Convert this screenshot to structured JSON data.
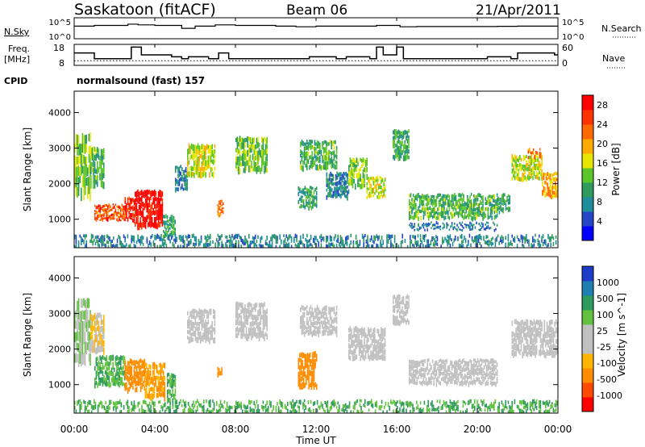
{
  "header": {
    "station": "Saskatoon (fitACF)",
    "beam": "Beam 06",
    "date": "21/Apr/2011"
  },
  "aux": {
    "nsky_label": "N.Sky",
    "nsky_ticks": [
      "10^5",
      "10^0"
    ],
    "nsearch_label": "N.Search",
    "nsearch_ticks": [
      "10^5",
      "10^0"
    ],
    "freq_label_top": "Freq.",
    "freq_label_bottom": "[MHz]",
    "freq_ticks": [
      "18",
      "8"
    ],
    "nave_label": "Nave",
    "nave_ticks": [
      "60",
      "0"
    ],
    "cpid_label": "CPID",
    "cpid_text": "normalsound (fast) 157"
  },
  "colors": {
    "power": [
      "#0000ff",
      "#2546c8",
      "#1e8e9a",
      "#2e9a5e",
      "#5cc52a",
      "#e6e600",
      "#ffaa00",
      "#ff6a00",
      "#ff3300",
      "#ff0000"
    ],
    "velocity": [
      "#ff0000",
      "#ff4a00",
      "#ff8c00",
      "#ffb400",
      "#c0c0c0",
      "#c0c0c0",
      "#62c240",
      "#2e9a5e",
      "#1e7fb0",
      "#1e3cc8"
    ]
  },
  "chart_data": [
    {
      "type": "line",
      "title": "N.Sky",
      "x": [
        "00:00",
        "01:00",
        "02:00",
        "02:40",
        "03:10",
        "04:00",
        "05:00",
        "05:20",
        "06:00",
        "07:00",
        "07:40",
        "08:00",
        "09:00",
        "10:00",
        "11:00",
        "12:00",
        "13:00",
        "14:00",
        "15:00",
        "16:00",
        "16:10",
        "17:00",
        "18:00",
        "19:00",
        "20:00",
        "21:00",
        "22:00",
        "23:00",
        "24:00"
      ],
      "ylim": [
        1,
        100000
      ],
      "yscale": "log",
      "yticks": [
        "10^0",
        "10^5"
      ],
      "values": [
        1000,
        1500,
        1500,
        3000,
        2000,
        1500,
        1500,
        300,
        1000,
        2000,
        2000,
        1500,
        1500,
        1000,
        700,
        1000,
        1000,
        1000,
        1500,
        1500,
        700,
        800,
        800,
        800,
        800,
        900,
        1000,
        1000,
        1000
      ]
    },
    {
      "type": "line",
      "title": "Freq.",
      "ylabel": "[MHz]",
      "ylim": [
        8,
        18
      ],
      "yticks": [
        "8",
        "18"
      ],
      "x_steps": [
        "00:00",
        "00:40",
        "01:00",
        "02:20",
        "02:50",
        "03:20",
        "04:50",
        "05:20",
        "05:40",
        "06:40",
        "07:10",
        "07:40",
        "10:00",
        "11:40",
        "13:00",
        "13:30",
        "14:40",
        "15:00",
        "15:20",
        "16:00",
        "16:20",
        "19:30",
        "20:30",
        "21:40",
        "22:00",
        "23:50",
        "24:00"
      ],
      "values": [
        14,
        14,
        11,
        11,
        17,
        13,
        12,
        11,
        12,
        11,
        14,
        11,
        11,
        12,
        11,
        12,
        11,
        17,
        13,
        17,
        11,
        11,
        12,
        11,
        14,
        13,
        13
      ],
      "reference_line": {
        "name": "Nave",
        "value": 12,
        "ylim": [
          0,
          60
        ],
        "yticks": [
          "0",
          "60"
        ]
      }
    },
    {
      "type": "heatmap",
      "title": "Power",
      "ylabel": "Slant Range [km]",
      "xlabel": "",
      "xlim": [
        "00:00",
        "24:00"
      ],
      "xticks": [
        "00:00",
        "04:00",
        "08:00",
        "12:00",
        "16:00",
        "20:00",
        "00:00"
      ],
      "ylim": [
        200,
        4600
      ],
      "yticks": [
        1000,
        2000,
        3000,
        4000
      ],
      "colorbar": {
        "label": "Power [dB]",
        "ticks": [
          4,
          8,
          12,
          16,
          20,
          24,
          28
        ],
        "range": [
          0,
          30
        ]
      },
      "segments": [
        [
          0.0,
          0.8,
          1600,
          3400,
          14
        ],
        [
          0.8,
          1.5,
          1900,
          3000,
          12
        ],
        [
          1.0,
          2.5,
          950,
          1400,
          24
        ],
        [
          2.5,
          3.0,
          950,
          1600,
          27
        ],
        [
          3.0,
          4.4,
          750,
          1800,
          29
        ],
        [
          4.4,
          5.0,
          500,
          1100,
          10
        ],
        [
          5.0,
          5.6,
          1800,
          2500,
          8
        ],
        [
          5.6,
          7.0,
          2200,
          3100,
          16
        ],
        [
          7.1,
          7.4,
          1100,
          1500,
          22
        ],
        [
          8.0,
          9.6,
          2300,
          3300,
          14
        ],
        [
          11.1,
          12.0,
          1300,
          1900,
          10
        ],
        [
          11.2,
          13.0,
          2400,
          3200,
          12
        ],
        [
          12.5,
          13.6,
          1600,
          2300,
          8
        ],
        [
          13.6,
          14.5,
          1900,
          2700,
          14
        ],
        [
          14.5,
          15.4,
          1600,
          2200,
          16
        ],
        [
          15.8,
          16.6,
          2700,
          3500,
          11
        ],
        [
          16.6,
          21.0,
          1000,
          1700,
          12
        ],
        [
          16.6,
          21.0,
          700,
          900,
          7
        ],
        [
          21.0,
          21.6,
          1200,
          1700,
          10
        ],
        [
          21.7,
          23.2,
          2100,
          2800,
          16
        ],
        [
          22.5,
          23.2,
          2700,
          3000,
          22
        ],
        [
          23.2,
          24.0,
          1600,
          2300,
          20
        ],
        [
          0.0,
          24.0,
          200,
          550,
          8
        ]
      ]
    },
    {
      "type": "heatmap",
      "title": "Velocity",
      "ylabel": "Slant Range [km]",
      "xlabel": "Time UT",
      "xlim": [
        "00:00",
        "24:00"
      ],
      "xticks": [
        "00:00",
        "04:00",
        "08:00",
        "12:00",
        "16:00",
        "20:00",
        "00:00"
      ],
      "ylim": [
        200,
        4600
      ],
      "yticks": [
        1000,
        2000,
        3000,
        4000
      ],
      "colorbar": {
        "label": "Velocity [m s^-1]",
        "ticks": [
          "-1000",
          "-500",
          "-100",
          "-25",
          "25",
          "100",
          "500",
          "1000"
        ]
      },
      "segments": [
        [
          0.0,
          0.8,
          1600,
          3400,
          25
        ],
        [
          0.8,
          1.5,
          1900,
          3000,
          -25
        ],
        [
          1.0,
          2.5,
          950,
          1800,
          100
        ],
        [
          2.5,
          3.5,
          800,
          1700,
          -300
        ],
        [
          3.5,
          4.5,
          600,
          1600,
          -100
        ],
        [
          4.6,
          5.0,
          500,
          1300,
          100
        ],
        [
          5.6,
          7.0,
          2200,
          3100,
          10
        ],
        [
          7.1,
          7.4,
          1200,
          1500,
          -300
        ],
        [
          8.0,
          9.6,
          2300,
          3300,
          10
        ],
        [
          11.1,
          12.0,
          900,
          1900,
          -300
        ],
        [
          11.2,
          13.0,
          2400,
          3200,
          10
        ],
        [
          13.6,
          15.4,
          1700,
          2600,
          10
        ],
        [
          15.8,
          16.6,
          2700,
          3500,
          10
        ],
        [
          16.6,
          21.0,
          1000,
          1700,
          10
        ],
        [
          21.7,
          24.0,
          1800,
          2800,
          10
        ],
        [
          0.0,
          24.0,
          200,
          550,
          100
        ]
      ]
    }
  ]
}
